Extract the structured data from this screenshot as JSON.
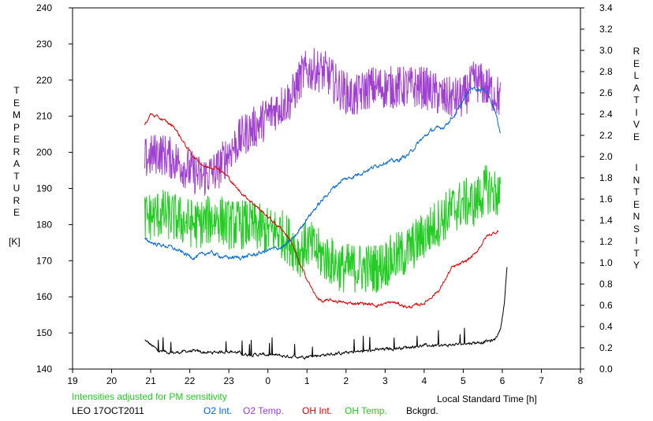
{
  "chart_data": {
    "type": "line",
    "xlabel": "Local Standard Time [h]",
    "x_ticks": [
      "19",
      "20",
      "21",
      "22",
      "23",
      "0",
      "1",
      "2",
      "3",
      "4",
      "5",
      "6",
      "7",
      "8"
    ],
    "xlim": [
      19,
      32
    ],
    "y_left": {
      "label_letters": [
        "T",
        "E",
        "M",
        "P",
        "E",
        "R",
        "A",
        "T",
        "U",
        "R",
        "E"
      ],
      "unit": "[K]",
      "ylim": [
        140,
        240
      ],
      "ticks": [
        "140",
        "150",
        "160",
        "170",
        "180",
        "190",
        "200",
        "210",
        "220",
        "230",
        "240"
      ]
    },
    "y_right": {
      "label_word1": [
        "R",
        "E",
        "L",
        "A",
        "T",
        "I",
        "V",
        "E"
      ],
      "label_word2": [
        "I",
        "N",
        "T",
        "E",
        "N",
        "S",
        "I",
        "T",
        "Y"
      ],
      "ylim": [
        0,
        3.4
      ],
      "ticks": [
        "0.0",
        "0.2",
        "0.4",
        "0.6",
        "0.8",
        "1.0",
        "1.2",
        "1.4",
        "1.6",
        "1.8",
        "2.0",
        "2.2",
        "2.4",
        "2.6",
        "2.8",
        "3.0",
        "3.2",
        "3.4"
      ]
    },
    "note": "Intensities adjusted for PM sensitivity",
    "station": "LEO 17OCT2011",
    "series": [
      {
        "name": "O2 Int.",
        "axis": "right",
        "color": "#0066dd",
        "noise": 0.025,
        "x": [
          20.85,
          21.1,
          21.5,
          21.9,
          22.1,
          22.5,
          22.9,
          23.3,
          23.7,
          24.0,
          24.4,
          24.7,
          25.0,
          25.3,
          25.6,
          25.9,
          26.1,
          26.4,
          26.7,
          27.0,
          27.3,
          27.6,
          27.9,
          28.2,
          28.5,
          28.8,
          29.2,
          29.6,
          29.8,
          29.95
        ],
        "y": [
          1.22,
          1.18,
          1.15,
          1.08,
          1.05,
          1.1,
          1.05,
          1.05,
          1.08,
          1.12,
          1.15,
          1.25,
          1.42,
          1.55,
          1.68,
          1.78,
          1.8,
          1.85,
          1.9,
          1.95,
          1.96,
          2.02,
          2.15,
          2.25,
          2.28,
          2.4,
          2.65,
          2.62,
          2.45,
          2.22
        ]
      },
      {
        "name": "O2 Temp.",
        "axis": "left",
        "color": "#a040d0",
        "noise": 6,
        "x": [
          20.85,
          21.2,
          21.6,
          22.0,
          22.3,
          22.7,
          23.0,
          23.4,
          23.8,
          24.2,
          24.6,
          24.9,
          25.2,
          25.5,
          25.8,
          26.2,
          26.6,
          27.0,
          27.5,
          28.0,
          28.5,
          29.0,
          29.3,
          29.6,
          29.95
        ],
        "y": [
          198,
          200,
          198,
          195,
          193,
          195,
          200,
          205,
          208,
          212,
          215,
          222,
          223,
          222,
          218,
          215,
          218,
          218,
          218,
          218,
          215,
          215,
          220,
          218,
          215
        ]
      },
      {
        "name": "OH Int.",
        "axis": "right",
        "color": "#dd0000",
        "noise": 0.02,
        "x": [
          20.85,
          21.0,
          21.3,
          21.6,
          21.9,
          22.1,
          22.4,
          22.7,
          23.0,
          23.2,
          23.5,
          23.8,
          24.1,
          24.4,
          24.6,
          24.8,
          25.0,
          25.2,
          25.4,
          25.6,
          26.0,
          26.4,
          26.8,
          27.2,
          27.6,
          28.0,
          28.4,
          28.7,
          29.0,
          29.3,
          29.6,
          29.9
        ],
        "y": [
          2.3,
          2.4,
          2.35,
          2.28,
          2.1,
          2.0,
          1.9,
          1.9,
          1.8,
          1.7,
          1.6,
          1.5,
          1.4,
          1.3,
          1.2,
          1.0,
          0.85,
          0.7,
          0.63,
          0.65,
          0.62,
          0.62,
          0.6,
          0.63,
          0.58,
          0.62,
          0.75,
          0.95,
          1.0,
          1.08,
          1.25,
          1.3
        ]
      },
      {
        "name": "OH Temp.",
        "axis": "left",
        "color": "#22cc22",
        "noise": 7,
        "x": [
          20.85,
          21.3,
          21.8,
          22.2,
          22.7,
          23.0,
          23.5,
          24.0,
          24.3,
          24.6,
          24.8,
          25.0,
          25.3,
          25.6,
          25.9,
          26.2,
          26.5,
          26.8,
          27.1,
          27.5,
          27.9,
          28.3,
          28.7,
          29.0,
          29.3,
          29.6,
          29.95
        ],
        "y": [
          182,
          183,
          181,
          180,
          182,
          180,
          180,
          178,
          178,
          175,
          172,
          175,
          172,
          170,
          168,
          168,
          168,
          168,
          170,
          172,
          176,
          180,
          184,
          186,
          186,
          190,
          188
        ]
      },
      {
        "name": "Bckgrd.",
        "axis": "left",
        "color": "#000000",
        "noise": 0.6,
        "x": [
          20.85,
          21.2,
          21.6,
          22.0,
          22.5,
          23.0,
          23.5,
          24.0,
          24.5,
          25.0,
          25.5,
          26.0,
          26.5,
          27.0,
          27.5,
          28.0,
          28.5,
          29.0,
          29.5,
          29.8,
          29.95,
          30.05,
          30.12
        ],
        "y": [
          148,
          145,
          144.5,
          145,
          144.5,
          145,
          144,
          144,
          143.5,
          143.5,
          144,
          144.5,
          145,
          145.5,
          146,
          146.5,
          146.5,
          147,
          147.5,
          148,
          151,
          158,
          168
        ]
      }
    ]
  }
}
